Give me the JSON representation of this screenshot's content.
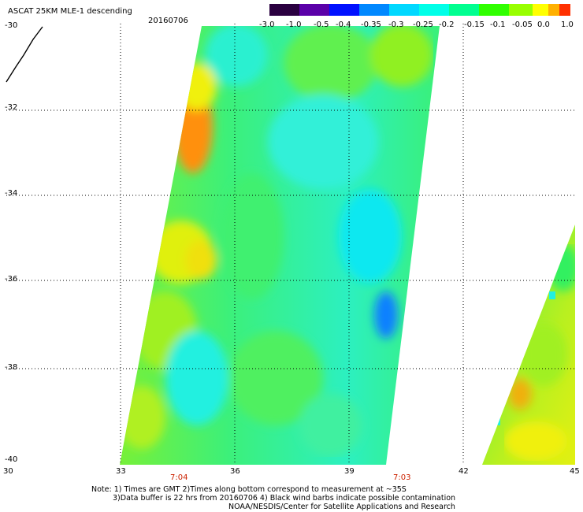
{
  "header": {
    "product": "ASCAT 25KM MLE-1 descending",
    "date": "20160706"
  },
  "colorbar": {
    "labels": [
      "-3.0",
      "-1.0",
      "-0.5",
      "-0.4",
      "-0.35",
      "-0.3",
      "-0.25",
      "-0.2",
      "-0.15",
      "-0.1",
      "-0.05",
      "0.0",
      "1.0"
    ],
    "colors": [
      "#2a0040",
      "#5a00a8",
      "#0010ff",
      "#0088ff",
      "#00d8ff",
      "#00ffe8",
      "#00ff90",
      "#30ff00",
      "#98ff00",
      "#ffff00",
      "#ffb000",
      "#ff5000",
      "#ff0000"
    ]
  },
  "axes": {
    "lat_labels": [
      "-30",
      "-32",
      "-34",
      "-36",
      "-38",
      "-40"
    ],
    "lon_labels": [
      "30",
      "33",
      "36",
      "39",
      "42",
      "45"
    ],
    "lat_range": [
      -40,
      -30
    ],
    "lon_range": [
      30,
      45
    ],
    "grid": "dotted"
  },
  "times": [
    "7:04",
    "7:03"
  ],
  "footer": {
    "line1": "Note: 1) Times are GMT 2)Times along bottom correspond to measurement at ~35S",
    "line2": "3)Data buffer is 22 hrs from 20160706 4) Black wind barbs indicate possible contamination",
    "line3": "NOAA/NESDIS/Center for Satellite Applications and Research"
  }
}
